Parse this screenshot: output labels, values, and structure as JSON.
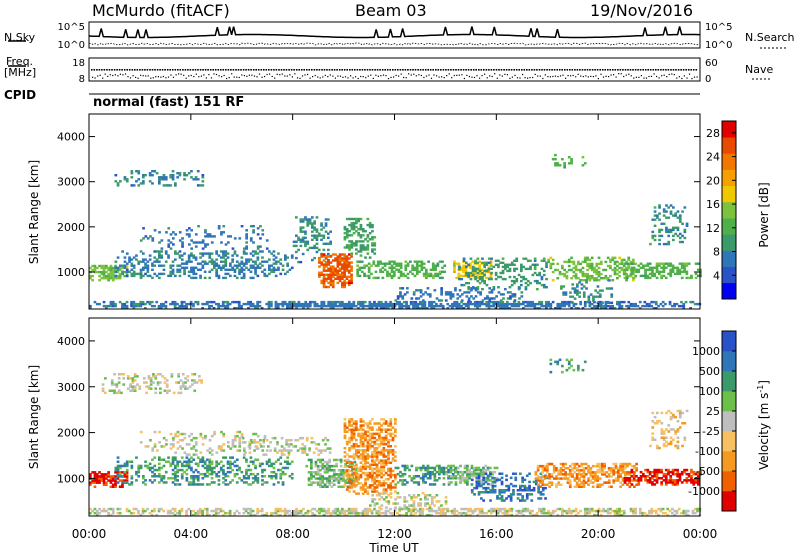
{
  "header": {
    "station": "McMurdo (fitACF)",
    "beam": "Beam 03",
    "date": "19/Nov/2016"
  },
  "top_panels": {
    "nsky_label": "N.Sky",
    "nsearch_label": "N.Search",
    "noise_ticks_left": [
      "10^5",
      "10^0"
    ],
    "noise_ticks_right": [
      "10^5",
      "10^0"
    ],
    "freq_label": "Freq.",
    "freq_unit": "[MHz]",
    "freq_ticks": [
      "18",
      "8"
    ],
    "nave_label": "Nave",
    "nave_ticks": [
      "60",
      "0"
    ],
    "cpid_label": "CPID",
    "mode_text": "normal (fast) 151 RF"
  },
  "colors": {
    "power": [
      "#0000f0",
      "#2a52c8",
      "#2f76b8",
      "#3c9a6a",
      "#4fb04a",
      "#7cc23c",
      "#f0c800",
      "#f5a000",
      "#f07800",
      "#e84a00",
      "#e00000"
    ],
    "velocity": [
      "#e00000",
      "#f06000",
      "#f59a20",
      "#f8c060",
      "#bebebe",
      "#6cc04a",
      "#3c9a6a",
      "#2f76b8",
      "#2a52c8"
    ]
  },
  "chart_data": [
    {
      "type": "heatmap",
      "name": "power",
      "ylabel": "Slant Range [km]",
      "ylim": [
        180,
        4500
      ],
      "yticks": [
        "1000",
        "2000",
        "3000",
        "4000"
      ],
      "xlim": [
        0,
        24
      ],
      "xticks": [
        "00:00",
        "04:00",
        "08:00",
        "12:00",
        "16:00",
        "20:00",
        "00:00"
      ],
      "colorbar_label": "Power [dB]",
      "colorbar_ticks": [
        "4",
        "8",
        "12",
        "16",
        "20",
        "24",
        "28"
      ],
      "crange": [
        0,
        30
      ],
      "blobs": [
        {
          "t0": 0.0,
          "t1": 24.0,
          "r0": 180,
          "r1": 330,
          "v": 6,
          "d": 0.8
        },
        {
          "t0": 0.0,
          "t1": 1.5,
          "r0": 800,
          "r1": 1150,
          "v": 14,
          "d": 0.85
        },
        {
          "t0": 1.0,
          "t1": 8.0,
          "r0": 850,
          "r1": 1450,
          "v": 7,
          "d": 0.45
        },
        {
          "t0": 2.0,
          "t1": 7.0,
          "r0": 1500,
          "r1": 2000,
          "v": 6,
          "d": 0.2
        },
        {
          "t0": 1.0,
          "t1": 4.5,
          "r0": 2900,
          "r1": 3250,
          "v": 7,
          "d": 0.35
        },
        {
          "t0": 8.0,
          "t1": 9.5,
          "r0": 1200,
          "r1": 2200,
          "v": 8,
          "d": 0.4
        },
        {
          "t0": 9.0,
          "t1": 10.3,
          "r0": 650,
          "r1": 1400,
          "v": 26,
          "d": 0.9
        },
        {
          "t0": 10.0,
          "t1": 11.2,
          "r0": 1300,
          "r1": 2200,
          "v": 10,
          "d": 0.5
        },
        {
          "t0": 10.5,
          "t1": 14.0,
          "r0": 850,
          "r1": 1250,
          "v": 12,
          "d": 0.55
        },
        {
          "t0": 14.3,
          "t1": 15.8,
          "r0": 850,
          "r1": 1250,
          "v": 18,
          "d": 0.7
        },
        {
          "t0": 14.5,
          "t1": 18.0,
          "r0": 600,
          "r1": 1300,
          "v": 9,
          "d": 0.35
        },
        {
          "t0": 18.0,
          "t1": 21.5,
          "r0": 800,
          "r1": 1300,
          "v": 14,
          "d": 0.55
        },
        {
          "t0": 21.0,
          "t1": 24.0,
          "r0": 850,
          "r1": 1200,
          "v": 12,
          "d": 0.6
        },
        {
          "t0": 18.5,
          "t1": 20.5,
          "r0": 300,
          "r1": 800,
          "v": 8,
          "d": 0.3
        },
        {
          "t0": 22.0,
          "t1": 23.5,
          "r0": 1600,
          "r1": 2500,
          "v": 8,
          "d": 0.3
        },
        {
          "t0": 18.0,
          "t1": 19.5,
          "r0": 3300,
          "r1": 3600,
          "v": 12,
          "d": 0.25
        },
        {
          "t0": 12.0,
          "t1": 17.0,
          "r0": 350,
          "r1": 650,
          "v": 6,
          "d": 0.35
        }
      ]
    },
    {
      "type": "heatmap",
      "name": "velocity",
      "ylabel": "Slant Range [km]",
      "ylim": [
        180,
        4500
      ],
      "yticks": [
        "1000",
        "2000",
        "3000",
        "4000"
      ],
      "xlim": [
        0,
        24
      ],
      "xticks": [
        "00:00",
        "04:00",
        "08:00",
        "12:00",
        "16:00",
        "20:00",
        "00:00"
      ],
      "xlabel": "Time UT",
      "colorbar_label": "Velocity [m s^-1]",
      "colorbar_ticks": [
        "1000",
        "500",
        "100",
        "25",
        "-25",
        "-100",
        "-500",
        "-1000"
      ],
      "blobs": [
        {
          "t0": 0.0,
          "t1": 24.0,
          "r0": 180,
          "r1": 330,
          "v": 4,
          "d": 0.65
        },
        {
          "t0": 0.0,
          "t1": 1.5,
          "r0": 800,
          "r1": 1150,
          "v": 0,
          "d": 0.85
        },
        {
          "t0": 1.0,
          "t1": 8.0,
          "r0": 850,
          "r1": 1450,
          "v": 6,
          "d": 0.45
        },
        {
          "t0": 2.0,
          "t1": 7.0,
          "r0": 1500,
          "r1": 2000,
          "v": 4,
          "d": 0.25
        },
        {
          "t0": 0.5,
          "t1": 4.5,
          "r0": 2850,
          "r1": 3300,
          "v": 4,
          "d": 0.4
        },
        {
          "t0": 6.0,
          "t1": 9.5,
          "r0": 1500,
          "r1": 1900,
          "v": 4,
          "d": 0.35
        },
        {
          "t0": 8.5,
          "t1": 10.5,
          "r0": 800,
          "r1": 1400,
          "v": 5,
          "d": 0.75
        },
        {
          "t0": 10.0,
          "t1": 12.0,
          "r0": 650,
          "r1": 2300,
          "v": 2,
          "d": 0.7
        },
        {
          "t0": 12.0,
          "t1": 14.5,
          "r0": 850,
          "r1": 1300,
          "v": 6,
          "d": 0.5
        },
        {
          "t0": 14.0,
          "t1": 16.0,
          "r0": 850,
          "r1": 1300,
          "v": 5,
          "d": 0.65
        },
        {
          "t0": 15.0,
          "t1": 18.0,
          "r0": 500,
          "r1": 1100,
          "v": 7,
          "d": 0.4
        },
        {
          "t0": 17.5,
          "t1": 21.5,
          "r0": 800,
          "r1": 1300,
          "v": 2,
          "d": 0.7
        },
        {
          "t0": 21.0,
          "t1": 24.0,
          "r0": 850,
          "r1": 1200,
          "v": 0,
          "d": 0.7
        },
        {
          "t0": 22.0,
          "t1": 23.5,
          "r0": 1600,
          "r1": 2500,
          "v": 3,
          "d": 0.3
        },
        {
          "t0": 18.0,
          "t1": 19.5,
          "r0": 3300,
          "r1": 3600,
          "v": 6,
          "d": 0.25
        },
        {
          "t0": 11.0,
          "t1": 14.0,
          "r0": 300,
          "r1": 700,
          "v": 4,
          "d": 0.3
        }
      ]
    }
  ]
}
